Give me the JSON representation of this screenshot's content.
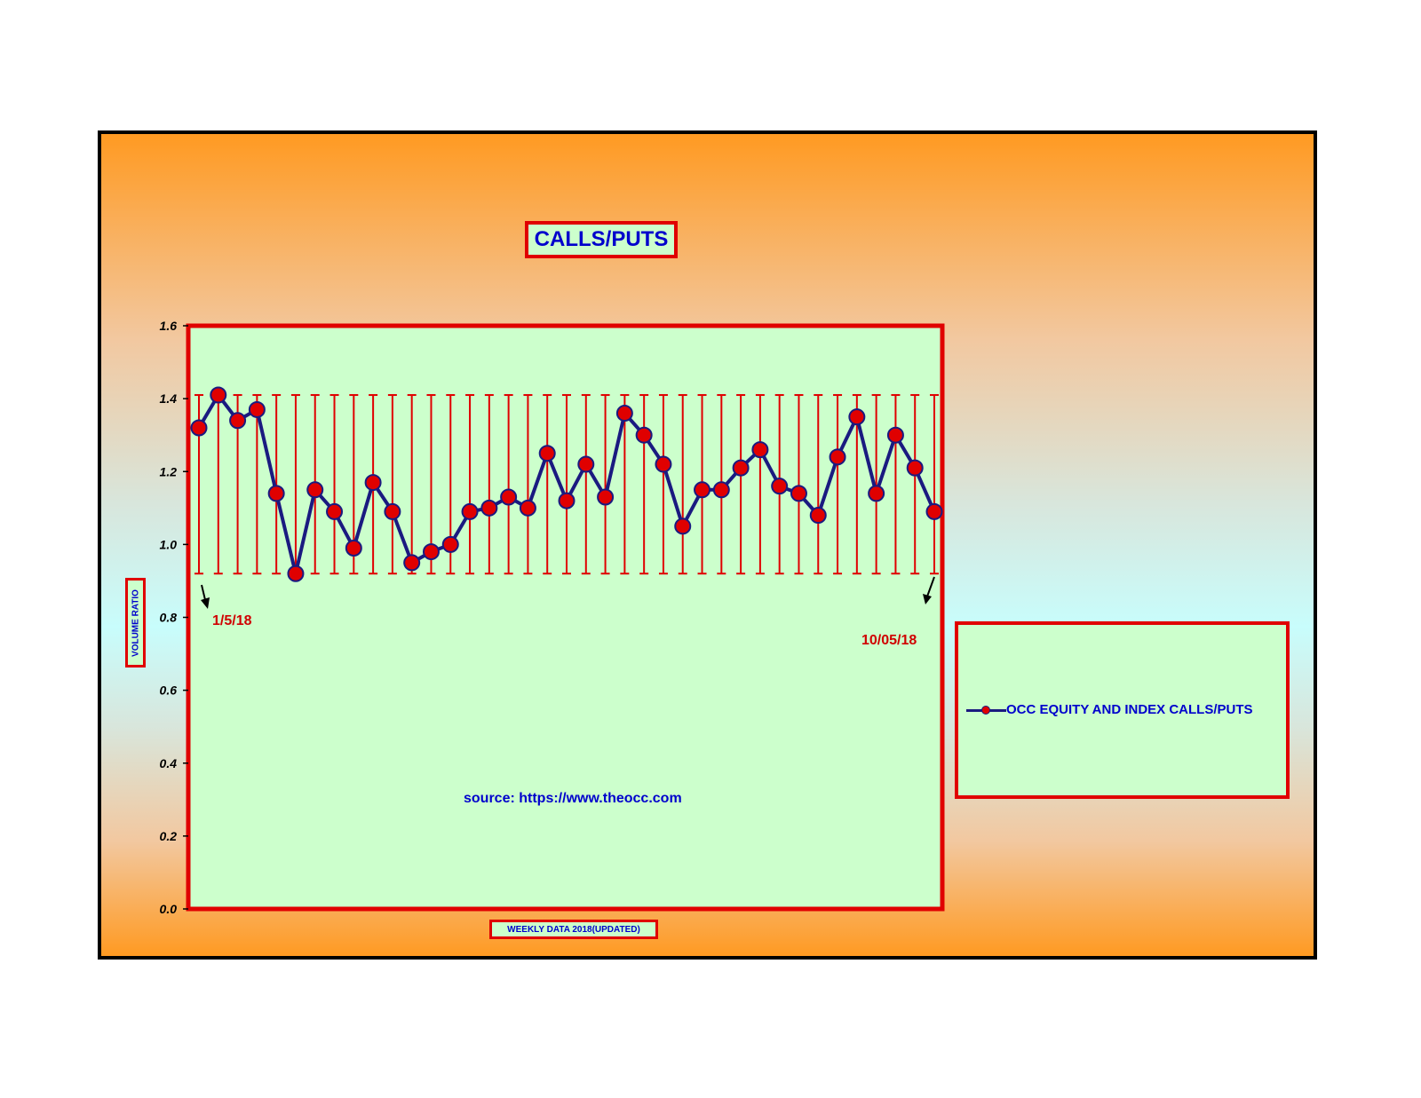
{
  "chart_data": {
    "type": "line",
    "title": "CALLS/PUTS",
    "xlabel": "WEEKLY DATA 2018(UPDATED)",
    "ylabel": "VOLUME RATIO",
    "ylim": [
      0,
      1.6
    ],
    "yticks": [
      "0.0",
      "0.2",
      "0.4",
      "0.6",
      "0.8",
      "1.0",
      "1.2",
      "1.4",
      "1.6"
    ],
    "grid": "vertical drop lines per data point",
    "legend_position": "right",
    "series": [
      {
        "name": "OCC EQUITY AND INDEX CALLS/PUTS",
        "color": "#1a1a80",
        "marker_color": "#e00000",
        "values": [
          1.32,
          1.41,
          1.34,
          1.37,
          1.14,
          0.92,
          1.15,
          1.09,
          0.99,
          1.17,
          1.09,
          0.95,
          0.98,
          1.0,
          1.09,
          1.1,
          1.13,
          1.1,
          1.25,
          1.12,
          1.22,
          1.13,
          1.36,
          1.3,
          1.22,
          1.05,
          1.15,
          1.15,
          1.21,
          1.26,
          1.16,
          1.14,
          1.08,
          1.24,
          1.35,
          1.14,
          1.3,
          1.21,
          1.09
        ]
      }
    ],
    "annotations": {
      "start": "1/5/18",
      "end": "10/05/18",
      "source": "source: https://www.theocc.com"
    }
  },
  "colors": {
    "plot_bg": "#ccffcc",
    "border_red": "#e00000",
    "text_blue": "#0000cc",
    "annot_red": "#d00000",
    "frame_orange": "#ff9a22",
    "frame_cyan": "#c8fdfc"
  }
}
